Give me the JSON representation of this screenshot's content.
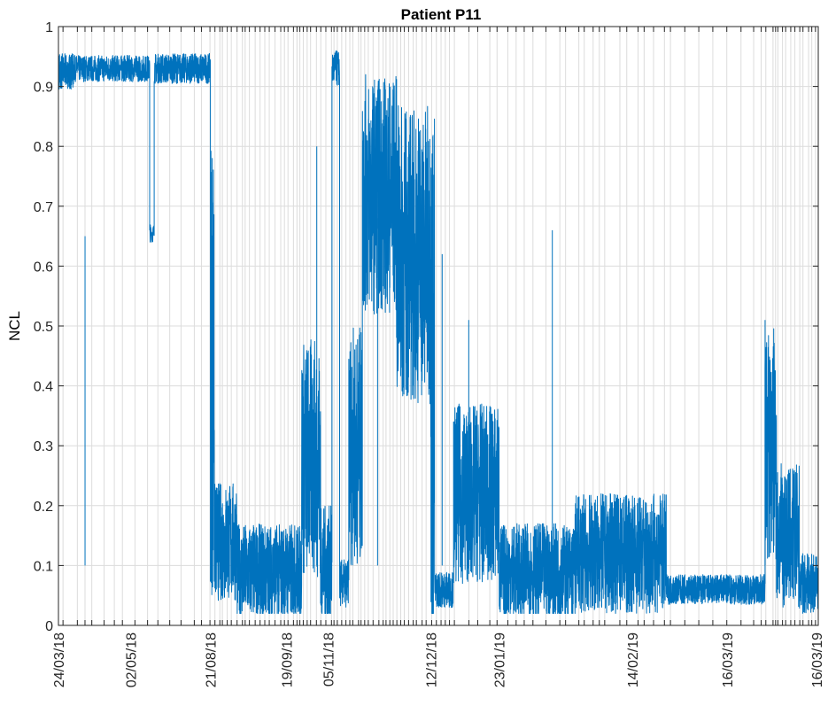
{
  "chart_data": {
    "type": "line",
    "title": "Patient P11",
    "xlabel": "",
    "ylabel": "NCL",
    "ylim": [
      0,
      1
    ],
    "yticks": [
      0,
      0.1,
      0.2,
      0.3,
      0.4,
      0.5,
      0.6,
      0.7,
      0.8,
      0.9,
      1
    ],
    "ytick_labels": [
      "0",
      "0.1",
      "0.2",
      "0.3",
      "0.4",
      "0.5",
      "0.6",
      "0.7",
      "0.8",
      "0.9",
      "1"
    ],
    "x_axis_note": "session index axis; labeled ticks at session boundaries",
    "xlim": [
      0,
      1000
    ],
    "xtick_labels": [
      {
        "x": 0,
        "label": "24/03/18"
      },
      {
        "x": 95,
        "label": "02/05/18"
      },
      {
        "x": 200,
        "label": "21/08/18"
      },
      {
        "x": 300,
        "label": "19/09/18"
      },
      {
        "x": 355,
        "label": "05/11/18"
      },
      {
        "x": 490,
        "label": "12/12/18"
      },
      {
        "x": 580,
        "label": "23/01/19"
      },
      {
        "x": 755,
        "label": "14/02/19"
      },
      {
        "x": 880,
        "label": "16/03/19"
      },
      {
        "x": 1000,
        "label": "16/03/19"
      }
    ],
    "grid": true,
    "series": [
      {
        "color": "#0072BD",
        "segments": [
          {
            "x0": 0,
            "x1": 20,
            "base": 0.925,
            "amp": 0.03
          },
          {
            "x0": 20,
            "x1": 120,
            "base": 0.93,
            "amp": 0.022
          },
          {
            "x0": 120,
            "x1": 126,
            "base": 0.655,
            "amp": 0.015
          },
          {
            "x0": 126,
            "x1": 200,
            "base": 0.93,
            "amp": 0.025
          },
          {
            "x0": 200,
            "x1": 205,
            "base": 0.45,
            "amp": 0.4
          },
          {
            "x0": 205,
            "x1": 235,
            "base": 0.14,
            "amp": 0.1
          },
          {
            "x0": 235,
            "x1": 320,
            "base": 0.09,
            "amp": 0.08
          },
          {
            "x0": 320,
            "x1": 345,
            "base": 0.28,
            "amp": 0.2
          },
          {
            "x0": 345,
            "x1": 360,
            "base": 0.1,
            "amp": 0.1
          },
          {
            "x0": 360,
            "x1": 370,
            "base": 0.93,
            "amp": 0.03
          },
          {
            "x0": 370,
            "x1": 382,
            "base": 0.07,
            "amp": 0.04
          },
          {
            "x0": 382,
            "x1": 400,
            "base": 0.3,
            "amp": 0.2
          },
          {
            "x0": 400,
            "x1": 445,
            "base": 0.72,
            "amp": 0.2
          },
          {
            "x0": 445,
            "x1": 490,
            "base": 0.62,
            "amp": 0.25
          },
          {
            "x0": 490,
            "x1": 495,
            "base": 0.4,
            "amp": 0.5
          },
          {
            "x0": 495,
            "x1": 520,
            "base": 0.06,
            "amp": 0.03
          },
          {
            "x0": 520,
            "x1": 580,
            "base": 0.22,
            "amp": 0.15
          },
          {
            "x0": 580,
            "x1": 680,
            "base": 0.09,
            "amp": 0.08
          },
          {
            "x0": 680,
            "x1": 800,
            "base": 0.12,
            "amp": 0.1
          },
          {
            "x0": 800,
            "x1": 930,
            "base": 0.06,
            "amp": 0.025
          },
          {
            "x0": 930,
            "x1": 945,
            "base": 0.3,
            "amp": 0.2
          },
          {
            "x0": 945,
            "x1": 975,
            "base": 0.15,
            "amp": 0.12
          },
          {
            "x0": 975,
            "x1": 1000,
            "base": 0.07,
            "amp": 0.05
          }
        ],
        "spikes": [
          {
            "x": 35,
            "y": 0.65
          },
          {
            "x": 340,
            "y": 0.8
          },
          {
            "x": 420,
            "y": 0.68
          },
          {
            "x": 505,
            "y": 0.62
          },
          {
            "x": 540,
            "y": 0.51
          },
          {
            "x": 650,
            "y": 0.66
          },
          {
            "x": 930,
            "y": 0.51
          }
        ]
      }
    ]
  }
}
